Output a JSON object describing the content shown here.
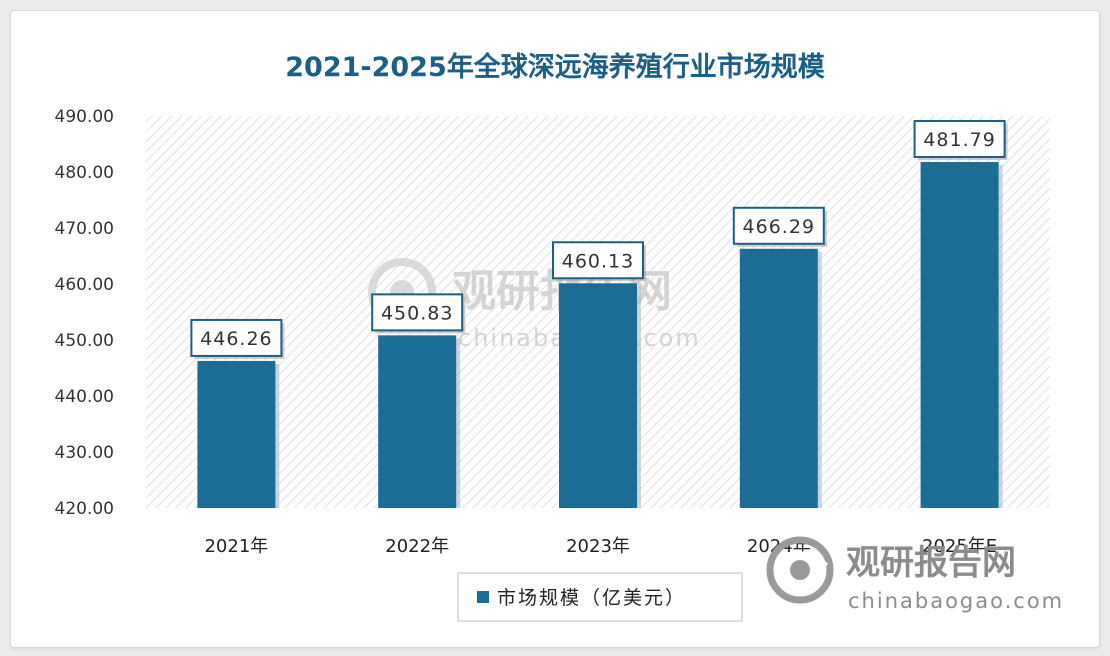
{
  "chart_data": {
    "type": "bar",
    "title": "2021-2025年全球深远海养殖行业市场规模",
    "categories": [
      "2021年",
      "2022年",
      "2023年",
      "2024年",
      "2025年E"
    ],
    "series": [
      {
        "name": "市场规模（亿美元）",
        "values": [
          446.26,
          450.83,
          460.13,
          466.29,
          481.79
        ]
      }
    ],
    "data_labels": [
      "446.26",
      "450.83",
      "460.13",
      "466.29",
      "481.79"
    ],
    "yticks": [
      "420.00",
      "430.00",
      "440.00",
      "450.00",
      "460.00",
      "470.00",
      "480.00",
      "490.00"
    ],
    "ylim": [
      420,
      490
    ],
    "grid": false,
    "legend_position": "bottom",
    "bar_color": "#1b6d95"
  },
  "watermark": {
    "name": "观研报告网",
    "site": "chinabaogao.com"
  }
}
